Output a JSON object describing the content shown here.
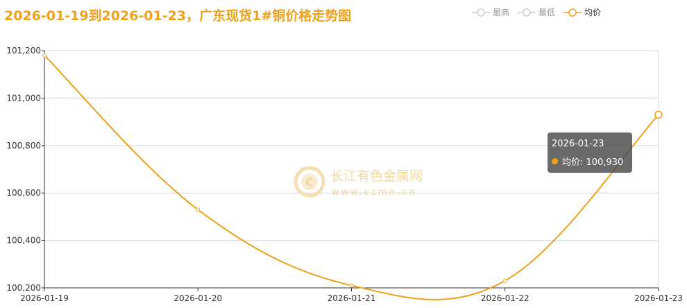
{
  "title": "2026-01-19到2026-01-23，广东现货1#铜价格走势图",
  "legend": [
    {
      "name": "最高",
      "active": false
    },
    {
      "name": "最低",
      "active": false
    },
    {
      "name": "均价",
      "active": true
    }
  ],
  "colors": {
    "series": "#f0a11a",
    "inactive": "#cccccc",
    "grid": "#d9d9d9",
    "axis": "#333333"
  },
  "watermark": {
    "cn": "长江有色金属网",
    "url": "www.ccmn.cn"
  },
  "tooltip": {
    "date": "2026-01-23",
    "label": "均价: 100,930"
  },
  "chart_data": {
    "type": "line",
    "categories": [
      "2026-01-19",
      "2026-01-20",
      "2026-01-21",
      "2026-01-22",
      "2026-01-23"
    ],
    "series": [
      {
        "name": "均价",
        "values": [
          101180,
          100530,
          100210,
          100230,
          100930
        ]
      }
    ],
    "ylim": [
      100200,
      101200
    ],
    "yticks": [
      "100,200",
      "100,400",
      "100,600",
      "100,800",
      "101,000",
      "101,200"
    ],
    "grid": true,
    "smooth": true
  }
}
